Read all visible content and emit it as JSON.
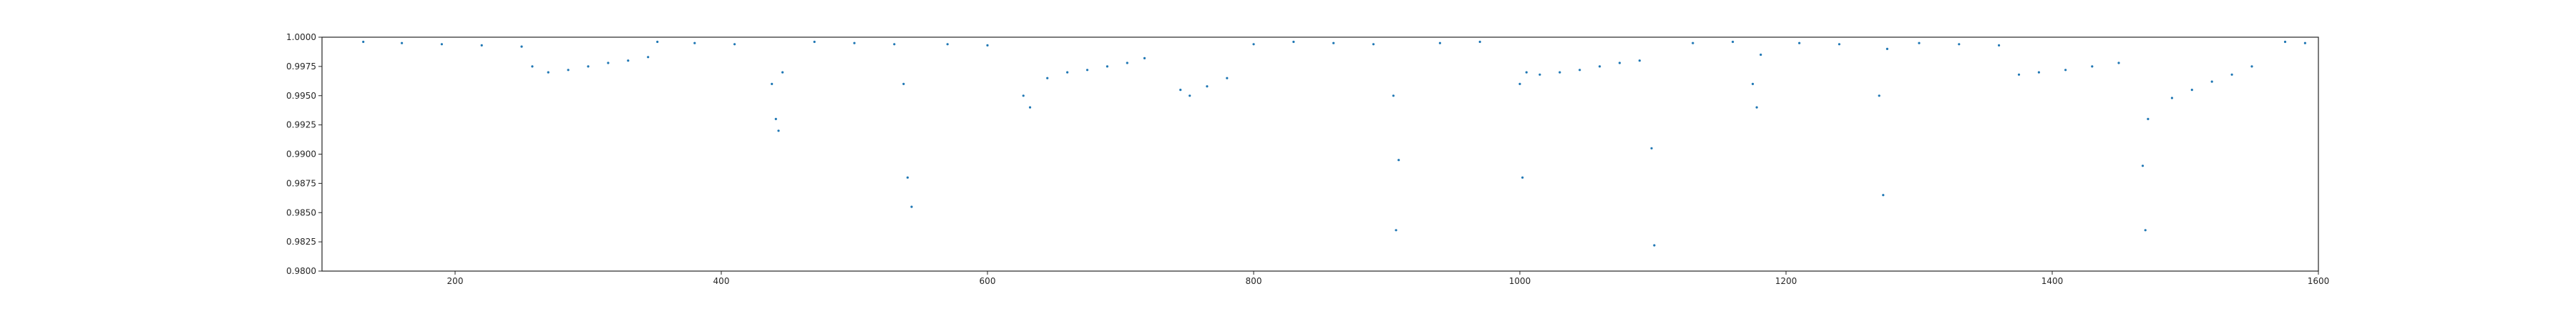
{
  "chart_data": {
    "type": "scatter",
    "title": "",
    "xlabel": "",
    "ylabel": "",
    "xlim": [
      100,
      1600
    ],
    "ylim": [
      0.98,
      1.0
    ],
    "grid": false,
    "legend": "none",
    "marker_color": "#1f77b4",
    "x_ticks": [
      200,
      400,
      600,
      800,
      1000,
      1200,
      1400,
      1600
    ],
    "y_ticks": [
      0.98,
      0.9825,
      0.985,
      0.9875,
      0.99,
      0.9925,
      0.995,
      0.9975,
      1.0
    ],
    "x_tick_labels": [
      "200",
      "400",
      "600",
      "800",
      "1000",
      "1200",
      "1400",
      "1600"
    ],
    "y_tick_labels": [
      "0.9800",
      "0.9825",
      "0.9850",
      "0.9875",
      "0.9900",
      "0.9925",
      "0.9950",
      "0.9975",
      "1.0000"
    ],
    "series": [
      {
        "x": [
          131,
          160,
          190,
          220,
          250,
          258,
          270,
          285,
          300,
          315,
          330,
          345,
          352,
          380,
          410,
          438,
          441,
          443,
          446,
          470,
          500,
          530,
          537,
          540,
          543,
          570,
          600,
          627,
          632,
          645,
          660,
          675,
          690,
          705,
          718,
          745,
          752,
          765,
          780,
          800,
          830,
          860,
          890,
          905,
          907,
          909,
          940,
          970,
          1000,
          1002,
          1005,
          1015,
          1030,
          1045,
          1060,
          1075,
          1090,
          1099,
          1101,
          1130,
          1160,
          1175,
          1178,
          1181,
          1210,
          1240,
          1270,
          1273,
          1276,
          1300,
          1330,
          1360,
          1375,
          1390,
          1410,
          1430,
          1450,
          1468,
          1470,
          1472,
          1490,
          1505,
          1520,
          1535,
          1550,
          1575,
          1590
        ],
        "y": [
          0.9996,
          0.9995,
          0.9994,
          0.9993,
          0.9992,
          0.9975,
          0.997,
          0.9972,
          0.9975,
          0.9978,
          0.998,
          0.9983,
          0.9996,
          0.9995,
          0.9994,
          0.996,
          0.993,
          0.992,
          0.997,
          0.9996,
          0.9995,
          0.9994,
          0.996,
          0.988,
          0.9855,
          0.9994,
          0.9993,
          0.995,
          0.994,
          0.9965,
          0.997,
          0.9972,
          0.9975,
          0.9978,
          0.9982,
          0.9955,
          0.995,
          0.9958,
          0.9965,
          0.9994,
          0.9996,
          0.9995,
          0.9994,
          0.995,
          0.9835,
          0.9895,
          0.9995,
          0.9996,
          0.996,
          0.988,
          0.997,
          0.9968,
          0.997,
          0.9972,
          0.9975,
          0.9978,
          0.998,
          0.9905,
          0.9822,
          0.9995,
          0.9996,
          0.996,
          0.994,
          0.9985,
          0.9995,
          0.9994,
          0.995,
          0.9865,
          0.999,
          0.9995,
          0.9994,
          0.9993,
          0.9968,
          0.997,
          0.9972,
          0.9975,
          0.9978,
          0.989,
          0.9835,
          0.993,
          0.9948,
          0.9955,
          0.9962,
          0.9968,
          0.9975,
          0.9996,
          0.9995
        ]
      }
    ]
  }
}
